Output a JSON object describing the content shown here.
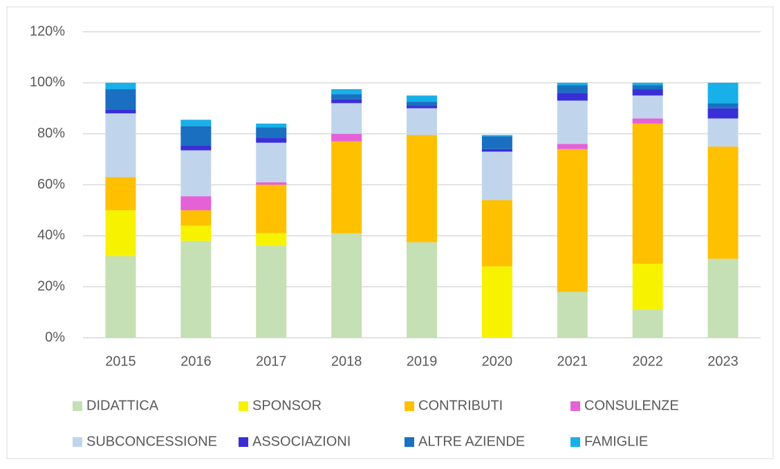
{
  "chart_data": {
    "type": "stacked_bar",
    "categories": [
      "2015",
      "2016",
      "2017",
      "2018",
      "2019",
      "2020",
      "2021",
      "2022",
      "2023"
    ],
    "series": [
      {
        "name": "DIDATTICA",
        "color": "#c5e0b4",
        "values": [
          32,
          38,
          36,
          41,
          37.5,
          0,
          18,
          11,
          31
        ]
      },
      {
        "name": "SPONSOR",
        "color": "#f7f300",
        "values": [
          18,
          6,
          5,
          0,
          0,
          28,
          0,
          18,
          0
        ]
      },
      {
        "name": "CONTRIBUTI",
        "color": "#ffc000",
        "values": [
          13,
          6,
          19,
          36,
          42,
          26,
          56,
          55,
          44
        ]
      },
      {
        "name": "CONSULENZE",
        "color": "#e462d6",
        "values": [
          0,
          5.5,
          1,
          3,
          0,
          0,
          2,
          2,
          0
        ]
      },
      {
        "name": "SUBCONCESSIONE",
        "color": "#c0d5ec",
        "values": [
          25,
          18,
          15.5,
          12,
          10.5,
          19,
          17,
          9,
          11
        ]
      },
      {
        "name": "ASSOCIAZIONI",
        "color": "#3a2fd6",
        "values": [
          1.5,
          2,
          2,
          1.5,
          1,
          1,
          3,
          2.5,
          4
        ]
      },
      {
        "name": "ALTRE AZIENDE",
        "color": "#1a6fc0",
        "values": [
          8,
          7.5,
          4,
          2,
          1.5,
          5,
          3,
          1.5,
          2
        ]
      },
      {
        "name": "FAMIGLIE",
        "color": "#18b0e8",
        "values": [
          2.5,
          2.5,
          1.5,
          2,
          2.5,
          0.5,
          1,
          1,
          8
        ]
      }
    ],
    "ylim": [
      0,
      120
    ],
    "yticks": [
      {
        "value": 0,
        "label": "0%"
      },
      {
        "value": 20,
        "label": "20%"
      },
      {
        "value": 40,
        "label": "40%"
      },
      {
        "value": 60,
        "label": "60%"
      },
      {
        "value": 80,
        "label": "80%"
      },
      {
        "value": 100,
        "label": "100%"
      },
      {
        "value": 120,
        "label": "120%"
      }
    ],
    "grid": true
  }
}
